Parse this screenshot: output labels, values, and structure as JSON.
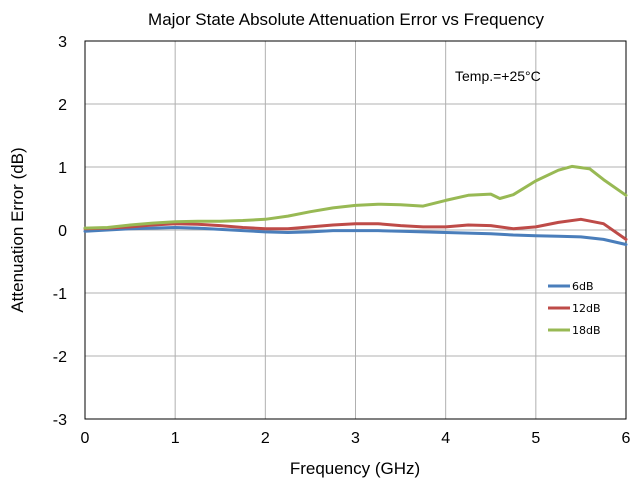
{
  "chart_data": {
    "type": "line",
    "title": "Major State Absolute Attenuation Error vs Frequency",
    "xlabel": "Frequency (GHz)",
    "ylabel": "Attenuation Error (dB)",
    "xlim": [
      0,
      6
    ],
    "ylim": [
      -3,
      3
    ],
    "xticks": [
      "0",
      "1",
      "2",
      "3",
      "4",
      "5",
      "6"
    ],
    "yticks": [
      "-3",
      "-2",
      "-1",
      "0",
      "1",
      "2",
      "3"
    ],
    "grid": true,
    "legend_position": "right",
    "annotation": "Temp.=+25°C",
    "series": [
      {
        "name": "6dB",
        "color": "#4a7ebb",
        "x": [
          0,
          0.25,
          0.5,
          0.75,
          1.0,
          1.25,
          1.5,
          1.75,
          2.0,
          2.25,
          2.5,
          2.75,
          3.0,
          3.25,
          3.5,
          3.75,
          4.0,
          4.25,
          4.5,
          4.75,
          5.0,
          5.25,
          5.5,
          5.75,
          6.0
        ],
        "values": [
          -0.02,
          0.0,
          0.02,
          0.03,
          0.04,
          0.03,
          0.01,
          -0.01,
          -0.03,
          -0.04,
          -0.03,
          -0.01,
          -0.01,
          -0.01,
          -0.02,
          -0.03,
          -0.04,
          -0.05,
          -0.06,
          -0.08,
          -0.09,
          -0.1,
          -0.11,
          -0.15,
          -0.23
        ]
      },
      {
        "name": "12dB",
        "color": "#be4b48",
        "x": [
          0,
          0.25,
          0.5,
          0.75,
          1.0,
          1.25,
          1.5,
          1.75,
          2.0,
          2.25,
          2.5,
          2.75,
          3.0,
          3.25,
          3.5,
          3.75,
          4.0,
          4.25,
          4.5,
          4.75,
          5.0,
          5.25,
          5.5,
          5.75,
          6.0
        ],
        "values": [
          0.02,
          0.03,
          0.05,
          0.08,
          0.1,
          0.09,
          0.07,
          0.04,
          0.02,
          0.02,
          0.05,
          0.08,
          0.1,
          0.1,
          0.07,
          0.05,
          0.05,
          0.08,
          0.07,
          0.02,
          0.05,
          0.12,
          0.17,
          0.1,
          -0.15
        ]
      },
      {
        "name": "18dB",
        "color": "#98b954",
        "x": [
          0,
          0.25,
          0.5,
          0.75,
          1.0,
          1.25,
          1.5,
          1.75,
          2.0,
          2.25,
          2.5,
          2.75,
          3.0,
          3.25,
          3.5,
          3.75,
          4.0,
          4.25,
          4.5,
          4.6,
          4.75,
          5.0,
          5.25,
          5.4,
          5.6,
          5.75,
          6.0
        ],
        "values": [
          0.03,
          0.04,
          0.08,
          0.11,
          0.13,
          0.14,
          0.14,
          0.15,
          0.17,
          0.22,
          0.29,
          0.35,
          0.39,
          0.41,
          0.4,
          0.38,
          0.47,
          0.55,
          0.57,
          0.5,
          0.56,
          0.78,
          0.95,
          1.01,
          0.97,
          0.8,
          0.55
        ]
      }
    ]
  }
}
